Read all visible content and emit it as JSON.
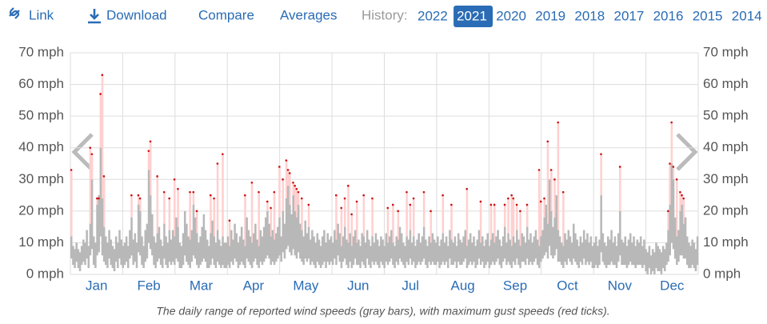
{
  "nav": {
    "link": "Link",
    "download": "Download",
    "compare": "Compare",
    "averages": "Averages",
    "history_label": "History:",
    "years": [
      "2022",
      "2021",
      "2020",
      "2019",
      "2018",
      "2017",
      "2016",
      "2015",
      "2014"
    ],
    "selected_year": "2021"
  },
  "chart_data": {
    "type": "range_bar",
    "categories": [
      "Jan",
      "Feb",
      "Mar",
      "Apr",
      "May",
      "Jun",
      "Jul",
      "Aug",
      "Sep",
      "Oct",
      "Nov",
      "Dec"
    ],
    "ylim": [
      0,
      70
    ],
    "yticks": [
      {
        "value": 0,
        "label": "0 mph"
      },
      {
        "value": 10,
        "label": "10 mph"
      },
      {
        "value": 20,
        "label": "20 mph"
      },
      {
        "value": 30,
        "label": "30 mph"
      },
      {
        "value": 40,
        "label": "40 mph"
      },
      {
        "value": 50,
        "label": "50 mph"
      },
      {
        "value": 60,
        "label": "60 mph"
      },
      {
        "value": 70,
        "label": "70 mph"
      }
    ],
    "grid": true,
    "bar_color": "#b8b8b8",
    "gust_color": "#cc1111",
    "gust_line_color": "#ffd0d0",
    "caption": "The daily range of reported wind speeds (gray bars), with maximum gust speeds (red ticks).",
    "lows": [
      5,
      3,
      2,
      4,
      2,
      1,
      3,
      4,
      3,
      5,
      2,
      6,
      8,
      3,
      2,
      6,
      7,
      12,
      6,
      4,
      3,
      2,
      5,
      3,
      2,
      1,
      4,
      2,
      5,
      3,
      2,
      3,
      4,
      2,
      5,
      6,
      3,
      4,
      2,
      7,
      6,
      3,
      2,
      4,
      5,
      10,
      8,
      6,
      3,
      2,
      4,
      5,
      3,
      2,
      5,
      3,
      2,
      4,
      3,
      4,
      3,
      5,
      4,
      2,
      2,
      3,
      6,
      4,
      3,
      2,
      4,
      6,
      5,
      3,
      2,
      3,
      4,
      5,
      4,
      2,
      2,
      3,
      5,
      3,
      2,
      4,
      3,
      2,
      3,
      2,
      2,
      3,
      2,
      4,
      3,
      5,
      4,
      2,
      3,
      4,
      3,
      2,
      5,
      4,
      3,
      2,
      4,
      5,
      3,
      2,
      4,
      3,
      4,
      5,
      6,
      5,
      3,
      4,
      3,
      4,
      5,
      6,
      4,
      7,
      5,
      8,
      9,
      7,
      6,
      8,
      6,
      5,
      7,
      5,
      4,
      3,
      5,
      4,
      5,
      3,
      4,
      3,
      2,
      4,
      3,
      2,
      3,
      4,
      2,
      4,
      3,
      4,
      3,
      5,
      3,
      6,
      4,
      2,
      4,
      5,
      3,
      2,
      4,
      2,
      3,
      5,
      3,
      3,
      2,
      4,
      3,
      2,
      5,
      3,
      2,
      4,
      3,
      4,
      3,
      2,
      4,
      3,
      2,
      4,
      3,
      4,
      5,
      3,
      2,
      4,
      3,
      5,
      4,
      3,
      2,
      4,
      3,
      5,
      3,
      4,
      2,
      3,
      4,
      3,
      4,
      5,
      3,
      2,
      4,
      3,
      4,
      3,
      3,
      4,
      2,
      3,
      4,
      3,
      4,
      2,
      5,
      3,
      3,
      4,
      2,
      4,
      3,
      3,
      4,
      5,
      2,
      3,
      4,
      3,
      4,
      2,
      3,
      5,
      3,
      4,
      2,
      3,
      4,
      2,
      3,
      4,
      3,
      4,
      5,
      3,
      2,
      4,
      5,
      3,
      4,
      3,
      2,
      4,
      3,
      5,
      3,
      2,
      4,
      4,
      3,
      5,
      3,
      4,
      3,
      4,
      5,
      3,
      2,
      4,
      5,
      6,
      7,
      5,
      9,
      6,
      5,
      6,
      8,
      4,
      4,
      3,
      2,
      4,
      3,
      5,
      4,
      3,
      5,
      4,
      3,
      2,
      4,
      3,
      5,
      3,
      4,
      3,
      4,
      2,
      2,
      3,
      2,
      3,
      7,
      4,
      3,
      2,
      3,
      3,
      4,
      3,
      3,
      2,
      4,
      6,
      3,
      3,
      3,
      2,
      3,
      4,
      3,
      3,
      2,
      3,
      3,
      3,
      2,
      3,
      1,
      0,
      2,
      0,
      1,
      0,
      2,
      1,
      1,
      0,
      2,
      1,
      3,
      4,
      6,
      10,
      8,
      5,
      3,
      4,
      6,
      6,
      5,
      5,
      3,
      2,
      2,
      3,
      2,
      1,
      3
    ],
    "highs": [
      12,
      9,
      8,
      10,
      8,
      7,
      9,
      11,
      10,
      14,
      9,
      16,
      30,
      12,
      10,
      22,
      25,
      40,
      24,
      15,
      12,
      10,
      14,
      11,
      9,
      8,
      12,
      10,
      14,
      11,
      9,
      10,
      12,
      9,
      14,
      18,
      11,
      13,
      10,
      22,
      20,
      12,
      9,
      14,
      16,
      33,
      25,
      19,
      12,
      10,
      13,
      15,
      11,
      9,
      16,
      12,
      10,
      14,
      11,
      14,
      12,
      18,
      15,
      10,
      9,
      13,
      20,
      16,
      12,
      11,
      14,
      22,
      18,
      13,
      10,
      12,
      15,
      19,
      14,
      11,
      9,
      13,
      17,
      12,
      10,
      14,
      11,
      9,
      12,
      10,
      10,
      12,
      9,
      14,
      11,
      16,
      13,
      10,
      12,
      15,
      11,
      9,
      18,
      14,
      12,
      10,
      13,
      16,
      11,
      9,
      14,
      12,
      15,
      18,
      20,
      16,
      12,
      14,
      11,
      13,
      15,
      18,
      12,
      20,
      16,
      24,
      28,
      22,
      19,
      25,
      20,
      18,
      22,
      16,
      14,
      12,
      17,
      13,
      15,
      11,
      14,
      12,
      10,
      13,
      11,
      9,
      12,
      14,
      10,
      13,
      11,
      12,
      10,
      14,
      11,
      16,
      13,
      9,
      12,
      15,
      11,
      10,
      13,
      9,
      12,
      14,
      10,
      11,
      9,
      13,
      12,
      10,
      14,
      11,
      9,
      12,
      10,
      13,
      11,
      9,
      12,
      11,
      9,
      13,
      10,
      12,
      14,
      10,
      9,
      12,
      11,
      15,
      13,
      10,
      9,
      12,
      11,
      14,
      10,
      12,
      9,
      11,
      13,
      10,
      12,
      15,
      11,
      9,
      12,
      10,
      13,
      11,
      10,
      12,
      9,
      11,
      13,
      10,
      12,
      9,
      14,
      11,
      10,
      12,
      9,
      13,
      11,
      10,
      12,
      14,
      9,
      11,
      13,
      10,
      12,
      9,
      11,
      14,
      10,
      12,
      9,
      11,
      13,
      9,
      11,
      13,
      10,
      12,
      14,
      11,
      9,
      12,
      15,
      10,
      13,
      11,
      9,
      12,
      10,
      14,
      11,
      9,
      13,
      12,
      10,
      15,
      11,
      13,
      10,
      12,
      14,
      11,
      9,
      12,
      14,
      18,
      22,
      16,
      30,
      20,
      15,
      18,
      25,
      14,
      12,
      10,
      9,
      13,
      11,
      14,
      12,
      10,
      16,
      13,
      11,
      9,
      12,
      10,
      14,
      11,
      13,
      10,
      12,
      9,
      10,
      12,
      9,
      11,
      25,
      13,
      10,
      9,
      12,
      11,
      14,
      10,
      12,
      9,
      13,
      20,
      11,
      10,
      12,
      9,
      11,
      13,
      10,
      12,
      9,
      11,
      10,
      12,
      9,
      11,
      8,
      7,
      9,
      6,
      8,
      7,
      10,
      9,
      8,
      7,
      9,
      8,
      10,
      14,
      22,
      35,
      30,
      18,
      12,
      14,
      20,
      22,
      16,
      18,
      12,
      10,
      9,
      11,
      10,
      8,
      12
    ],
    "gusts": [
      33,
      null,
      null,
      null,
      null,
      null,
      null,
      null,
      null,
      null,
      null,
      40,
      38,
      null,
      null,
      24,
      24,
      57,
      63,
      31,
      null,
      null,
      null,
      null,
      null,
      null,
      null,
      null,
      null,
      null,
      null,
      null,
      null,
      null,
      null,
      25,
      null,
      null,
      null,
      25,
      24,
      null,
      null,
      null,
      null,
      39,
      42,
      null,
      null,
      null,
      31,
      null,
      null,
      null,
      26,
      null,
      null,
      24,
      null,
      null,
      30,
      null,
      27,
      null,
      null,
      null,
      null,
      null,
      null,
      26,
      null,
      26,
      null,
      20,
      null,
      null,
      null,
      null,
      null,
      null,
      null,
      25,
      null,
      24,
      null,
      35,
      null,
      null,
      38,
      null,
      null,
      null,
      17,
      null,
      null,
      null,
      null,
      null,
      null,
      null,
      null,
      25,
      null,
      null,
      null,
      29,
      null,
      null,
      null,
      26,
      null,
      null,
      null,
      null,
      23,
      null,
      21,
      null,
      26,
      null,
      null,
      34,
      null,
      30,
      null,
      36,
      33,
      32,
      null,
      29,
      28,
      27,
      26,
      null,
      24,
      null,
      null,
      null,
      22,
      null,
      null,
      null,
      null,
      null,
      null,
      null,
      null,
      null,
      null,
      null,
      null,
      null,
      null,
      null,
      25,
      null,
      null,
      21,
      null,
      24,
      null,
      28,
      null,
      19,
      null,
      null,
      23,
      null,
      null,
      null,
      25,
      null,
      null,
      null,
      null,
      24,
      null,
      null,
      null,
      null,
      null,
      null,
      null,
      null,
      21,
      null,
      null,
      22,
      null,
      null,
      20,
      null,
      null,
      null,
      null,
      26,
      null,
      22,
      null,
      24,
      null,
      null,
      null,
      null,
      null,
      26,
      null,
      null,
      null,
      20,
      null,
      null,
      null,
      null,
      null,
      null,
      25,
      null,
      null,
      null,
      null,
      22,
      null,
      null,
      null,
      null,
      null,
      null,
      null,
      null,
      27,
      null,
      null,
      null,
      null,
      null,
      null,
      null,
      23,
      null,
      null,
      null,
      null,
      null,
      22,
      null,
      22,
      null,
      null,
      null,
      null,
      null,
      22,
      null,
      24,
      null,
      25,
      24,
      null,
      22,
      null,
      20,
      null,
      null,
      null,
      22,
      null,
      null,
      null,
      null,
      null,
      null,
      33,
      23,
      null,
      24,
      null,
      42,
      null,
      33,
      null,
      30,
      null,
      48,
      null,
      null,
      26,
      null,
      null,
      null,
      null,
      null,
      null,
      null,
      null,
      null,
      null,
      null,
      null,
      null,
      null,
      null,
      null,
      null,
      null,
      null,
      null,
      null,
      38,
      null,
      null,
      null,
      null,
      null,
      null,
      null,
      null,
      null,
      null,
      34,
      null,
      null,
      null,
      null,
      null,
      null,
      null,
      null,
      null,
      null,
      null,
      null,
      null,
      null,
      null,
      null,
      null,
      null,
      null,
      null,
      null,
      null,
      null,
      null,
      null,
      null,
      null,
      20,
      35,
      48,
      34,
      null,
      30,
      null,
      26,
      25,
      24,
      null,
      null,
      null,
      null,
      null,
      null,
      null,
      null
    ]
  }
}
